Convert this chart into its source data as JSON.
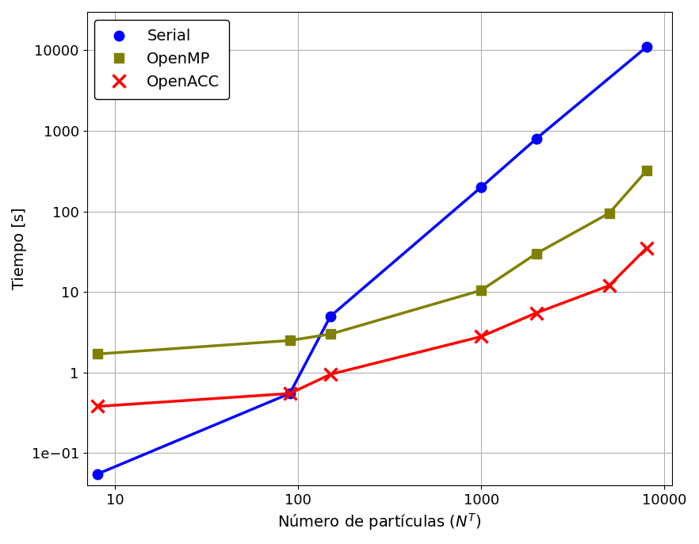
{
  "serial_x": [
    8,
    90,
    150,
    1000,
    2000,
    8000
  ],
  "serial_y": [
    0.055,
    0.55,
    5.0,
    200.0,
    800.0,
    11000.0
  ],
  "openmp_x": [
    8,
    90,
    150,
    1000,
    2000,
    5000,
    8000
  ],
  "openmp_y": [
    1.7,
    2.5,
    3.0,
    10.5,
    30.0,
    95.0,
    320.0
  ],
  "openacc_x": [
    8,
    90,
    150,
    1000,
    2000,
    5000,
    8000
  ],
  "openacc_y": [
    0.38,
    0.55,
    0.95,
    2.8,
    5.5,
    12.0,
    35.0
  ],
  "serial_color": "#0000ff",
  "openmp_color": "#808000",
  "openacc_color": "#ff0000",
  "serial_label": "Serial",
  "openmp_label": "OpenMP",
  "openacc_label": "OpenACC",
  "xlabel": "Número de partículas ($N^T$)",
  "ylabel": "Tiempo [s]",
  "xlim": [
    7,
    11000
  ],
  "ylim": [
    0.04,
    30000
  ],
  "grid_color": "#b0b0b0",
  "background_color": "#ffffff",
  "legend_fontsize": 14,
  "label_fontsize": 14,
  "tick_fontsize": 13,
  "linewidth": 2.5,
  "markersize": 9
}
